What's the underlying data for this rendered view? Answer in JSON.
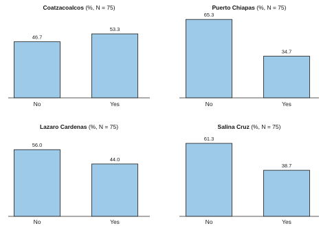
{
  "chart_data": [
    {
      "type": "bar",
      "title_bold": "Coatzacoalcos",
      "title_rest": " (%, N = 75)",
      "categories": [
        "No",
        "Yes"
      ],
      "values": [
        46.7,
        53.3
      ],
      "value_labels": [
        "46.7",
        "53.3"
      ],
      "ylim": [
        0,
        70
      ]
    },
    {
      "type": "bar",
      "title_bold": "Puerto Chiapas",
      "title_rest": " (%, N = 75)",
      "categories": [
        "No",
        "Yes"
      ],
      "values": [
        65.3,
        34.7
      ],
      "value_labels": [
        "65.3",
        "34.7"
      ],
      "ylim": [
        0,
        70
      ]
    },
    {
      "type": "bar",
      "title_bold": "Lazaro Cardenas",
      "title_rest": " (%, N = 75)",
      "categories": [
        "No",
        "Yes"
      ],
      "values": [
        56.0,
        44.0
      ],
      "value_labels": [
        "56.0",
        "44.0"
      ],
      "ylim": [
        0,
        70
      ]
    },
    {
      "type": "bar",
      "title_bold": "Salina Cruz",
      "title_rest": " (%, N = 75)",
      "categories": [
        "No",
        "Yes"
      ],
      "values": [
        61.3,
        38.7
      ],
      "value_labels": [
        "61.3",
        "38.7"
      ],
      "ylim": [
        0,
        70
      ]
    }
  ],
  "colors": {
    "bar_fill": "#9ecae9",
    "bar_edge": "#1a1a1a"
  }
}
